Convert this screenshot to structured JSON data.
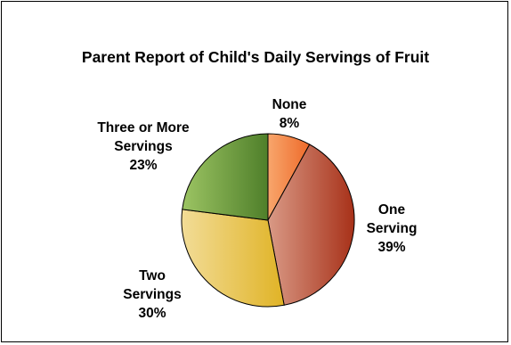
{
  "chart_data": {
    "type": "pie",
    "title": "Parent Report of Child's Daily Servings of Fruit",
    "slices": [
      {
        "label_lines": [
          "None"
        ],
        "value": 8,
        "value_label": "8%",
        "color_light": "#f8a66c",
        "color_dark": "#ee6a2a"
      },
      {
        "label_lines": [
          "One",
          "Serving"
        ],
        "value": 39,
        "value_label": "39%",
        "color_light": "#d99a86",
        "color_dark": "#a8321a"
      },
      {
        "label_lines": [
          "Two",
          "Servings"
        ],
        "value": 30,
        "value_label": "30%",
        "color_light": "#f2dc96",
        "color_dark": "#e0b326"
      },
      {
        "label_lines": [
          "Three or More",
          "Servings"
        ],
        "value": 23,
        "value_label": "23%",
        "color_light": "#9cc463",
        "color_dark": "#4f7f2a"
      }
    ],
    "start_angle_deg": 0,
    "direction": "clockwise"
  }
}
